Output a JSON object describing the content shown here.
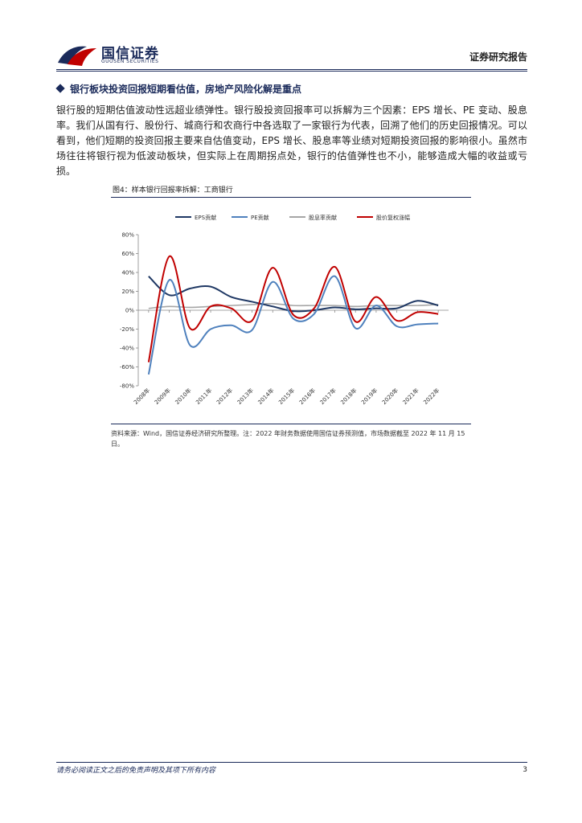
{
  "header": {
    "logo_cn": "国信证券",
    "logo_en": "GUOSEN SECURITIES",
    "report_type": "证券研究报告"
  },
  "section": {
    "heading": "银行板块投资回报短期看估值，房地产风险化解是重点"
  },
  "body": {
    "paragraph": "银行股的短期估值波动性远超业绩弹性。银行股投资回报率可以拆解为三个因素：EPS 增长、PE 变动、股息率。我们从国有行、股份行、城商行和农商行中各选取了一家银行为代表，回溯了他们的历史回报情况。可以看到，他们短期的投资回报主要来自估值变动，EPS 增长、股息率等业绩对短期投资回报的影响很小。虽然市场往往将银行视为低波动板块，但实际上在周期拐点处，银行的估值弹性也不小，能够造成大幅的收益或亏损。"
  },
  "figure": {
    "title": "图4：样本银行回报率拆解：工商银行",
    "source": "资料来源：Wind，国信证券经济研究所整理。注：2022 年财务数据使用国信证券预测值，市场数据截至 2022 年 11 月 15 日。"
  },
  "chart_data": {
    "type": "line",
    "smooth": true,
    "categories": [
      "2008年",
      "2009年",
      "2010年",
      "2011年",
      "2012年",
      "2013年",
      "2014年",
      "2015年",
      "2016年",
      "2017年",
      "2018年",
      "2019年",
      "2020年",
      "2021年",
      "2022年"
    ],
    "ylim": [
      -80,
      80
    ],
    "yticks": [
      -80,
      -60,
      -40,
      -20,
      0,
      20,
      40,
      60,
      80
    ],
    "ytick_labels": [
      "-80%",
      "-60%",
      "-40%",
      "-20%",
      "0%",
      "20%",
      "40%",
      "60%",
      "80%"
    ],
    "legend_position": "top",
    "grid": false,
    "series": [
      {
        "name": "EPS贡献",
        "color": "#1f3864",
        "values": [
          36,
          16,
          23,
          25,
          14,
          9,
          4,
          -1,
          0,
          3,
          1,
          2,
          2,
          10,
          5
        ]
      },
      {
        "name": "PE贡献",
        "color": "#4f81bd",
        "values": [
          -68,
          32,
          -37,
          -20,
          -16,
          -21,
          30,
          -9,
          -4,
          36,
          -19,
          5,
          -17,
          -15,
          -14
        ]
      },
      {
        "name": "股息率贡献",
        "color": "#a6a6a6",
        "values": [
          2,
          4,
          3,
          4,
          5,
          6,
          7,
          5,
          5,
          5,
          4,
          5,
          5,
          5,
          6
        ]
      },
      {
        "name": "股价复权涨幅",
        "color": "#c00000",
        "values": [
          -55,
          57,
          -19,
          4,
          2,
          -11,
          45,
          -5,
          2,
          46,
          -12,
          14,
          -11,
          -2,
          -4
        ]
      }
    ]
  },
  "footer": {
    "disclaimer": "请务必阅读正文之后的免责声明及其项下所有内容",
    "page": "3"
  }
}
